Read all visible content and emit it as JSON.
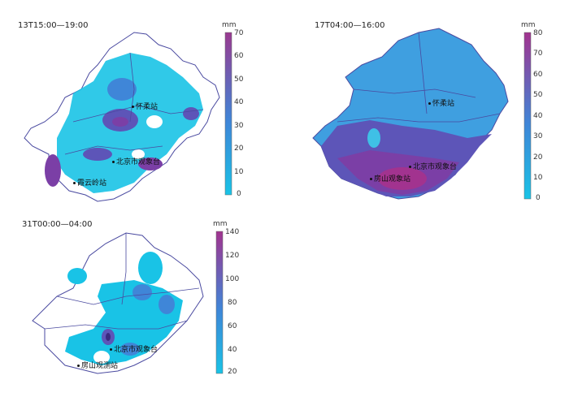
{
  "panels": [
    {
      "title": "13T15:00—19:00",
      "unit": "mm",
      "ticks": [
        "70",
        "60",
        "50",
        "40",
        "30",
        "20",
        "10",
        "0"
      ],
      "stations": [
        "怀柔站",
        "北京市观象台",
        "霞云岭站"
      ]
    },
    {
      "title": "17T04:00—16:00",
      "unit": "mm",
      "ticks": [
        "80",
        "70",
        "60",
        "50",
        "40",
        "30",
        "20",
        "10",
        "0"
      ],
      "stations": [
        "怀柔站",
        "北京市观象台",
        "房山观象站"
      ]
    },
    {
      "title": "31T00:00—04:00",
      "unit": "mm",
      "ticks": [
        "140",
        "120",
        "100",
        "80",
        "60",
        "40",
        "20"
      ],
      "stations": [
        "北京市观象台",
        "房山观测站"
      ]
    }
  ],
  "colors": {
    "low": "#19c3e6",
    "mid": "#3f86d8",
    "high": "#7b3fa6",
    "max": "#a2338f",
    "border": "#4a4aa0"
  }
}
